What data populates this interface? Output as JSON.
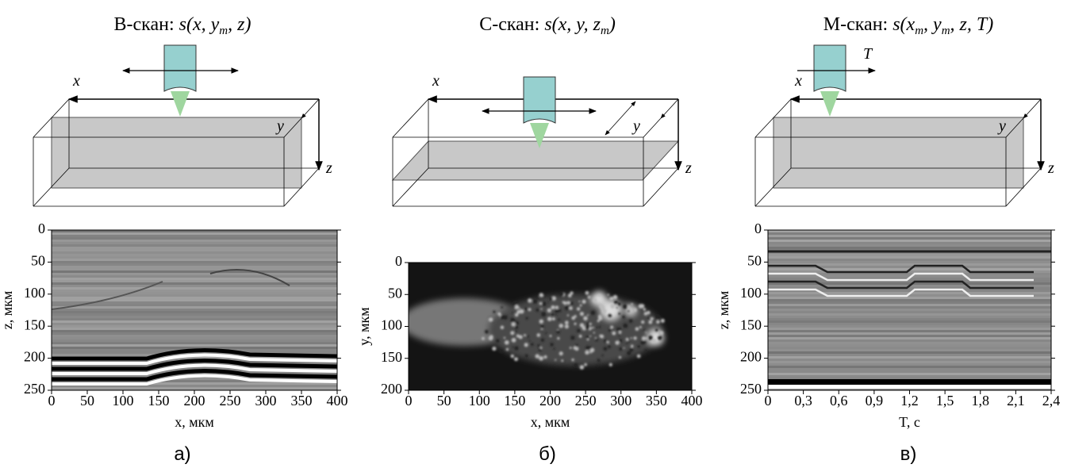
{
  "panels": [
    {
      "title": "В-скан:",
      "formula": [
        "s(x, y",
        "m",
        ", z)"
      ],
      "diagram_labels": {
        "x": "x",
        "y": "y",
        "z": "z"
      },
      "xlabel": "x, мкм",
      "ylabel": "z, мкм",
      "xlim": [
        0,
        400
      ],
      "xticks": [
        0,
        50,
        100,
        150,
        200,
        250,
        300,
        350,
        400
      ],
      "ylim": [
        250,
        0
      ],
      "yticks": [
        0,
        50,
        100,
        150,
        200,
        250
      ],
      "caption": "а)"
    },
    {
      "title": "С-скан:",
      "formula": [
        "s(x, y, z",
        "m",
        ")"
      ],
      "diagram_labels": {
        "x": "x",
        "y": "y",
        "z": "z"
      },
      "xlabel": "x, мкм",
      "ylabel": "y, мкм",
      "xlim": [
        0,
        400
      ],
      "xticks": [
        0,
        50,
        100,
        150,
        200,
        250,
        300,
        350,
        400
      ],
      "ylim": [
        200,
        0
      ],
      "yticks": [
        0,
        50,
        100,
        150,
        200
      ],
      "caption": "б)"
    },
    {
      "title": "М-скан:",
      "formula": [
        "s(x",
        "m",
        ", y",
        "m",
        ", z, T)"
      ],
      "diagram_labels": {
        "x": "x",
        "y": "y",
        "z": "z",
        "T": "T"
      },
      "xlabel": "T, с",
      "ylabel": "z, мкм",
      "xlim": [
        0,
        2.4
      ],
      "xticks": [
        0,
        {
          "value": 0.3,
          "label": "0,3"
        },
        {
          "value": 0.6,
          "label": "0,6"
        },
        {
          "value": 0.9,
          "label": "0,9"
        },
        {
          "value": 1.2,
          "label": "1,2"
        },
        {
          "value": 1.5,
          "label": "1,5"
        },
        {
          "value": 1.8,
          "label": "1,8"
        },
        {
          "value": 2.1,
          "label": "2,1"
        },
        {
          "value": 2.4,
          "label": "2,4"
        }
      ],
      "ylim": [
        250,
        0
      ],
      "yticks": [
        0,
        50,
        100,
        150,
        200,
        250
      ],
      "caption": "в)"
    }
  ]
}
